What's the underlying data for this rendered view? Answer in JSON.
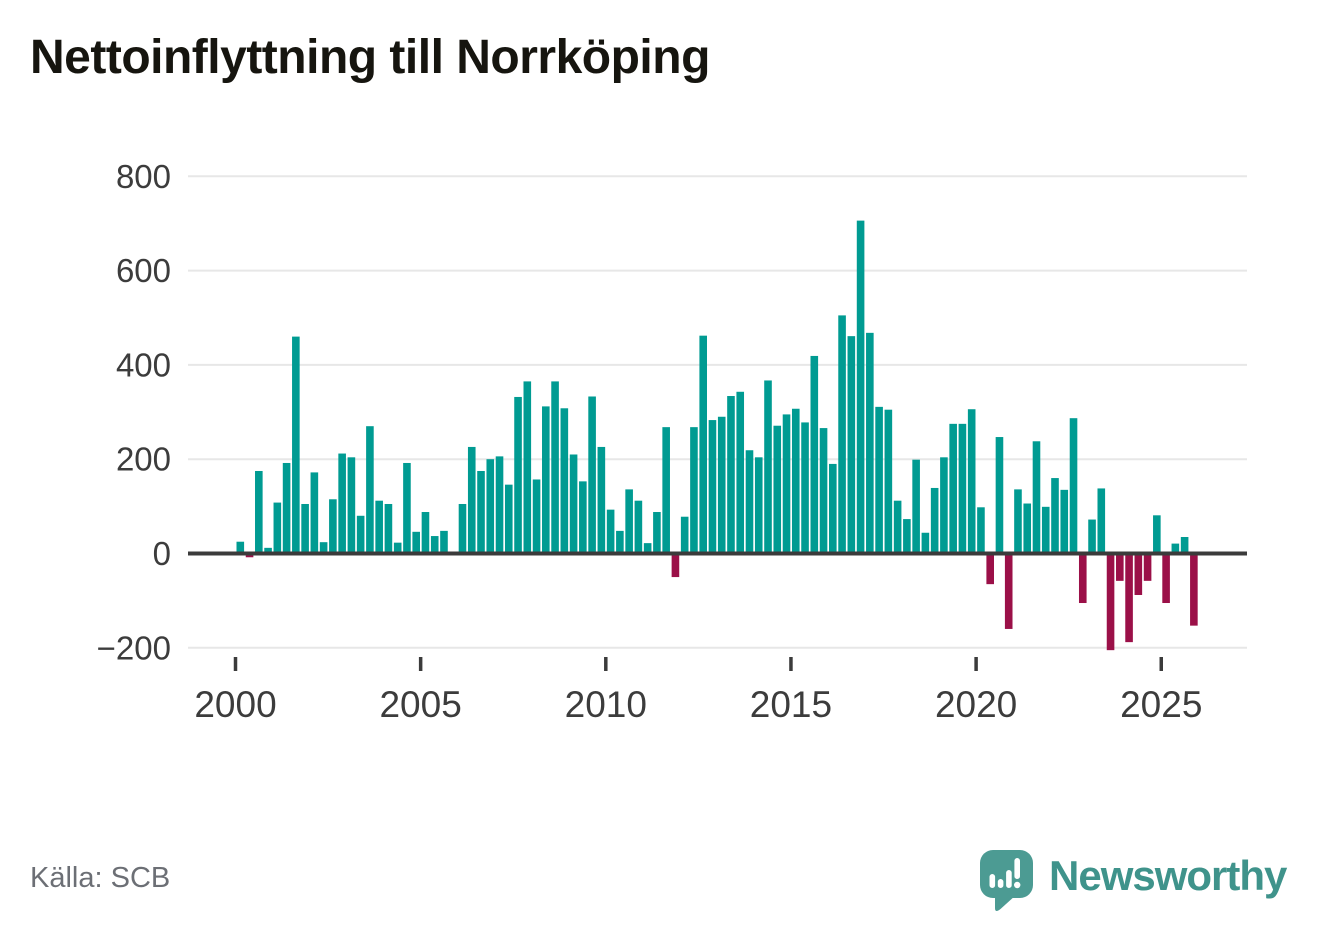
{
  "title": "Nettoinflyttning till Norrköping",
  "source": {
    "label": "Källa: SCB"
  },
  "logo": {
    "text": "Newsworthy",
    "icon": "newsworthy-bubble-chart-icon"
  },
  "chart_data": {
    "type": "bar",
    "title": "Nettoinflyttning till Norrköping",
    "xlabel": "",
    "ylabel": "",
    "frequency": "quarterly",
    "x_range": "2000 Q1 – 2025 Q4",
    "ylim": [
      -260,
      820
    ],
    "grid": true,
    "legend": "none",
    "colors": {
      "positive": "#009B92",
      "negative": "#9B1048",
      "axis": "#3B3B3B",
      "gridline": "#E7E7E7",
      "tick_text": "#3C3C3C"
    },
    "y_ticks": [
      {
        "label": "800",
        "value": 800
      },
      {
        "label": "600",
        "value": 600
      },
      {
        "label": "400",
        "value": 400
      },
      {
        "label": "200",
        "value": 200
      },
      {
        "label": "0",
        "value": 0
      },
      {
        "label": "−200",
        "value": -200
      }
    ],
    "x_ticks": [
      {
        "label": "2000",
        "year": 2000
      },
      {
        "label": "2005",
        "year": 2005
      },
      {
        "label": "2010",
        "year": 2010
      },
      {
        "label": "2015",
        "year": 2015
      },
      {
        "label": "2020",
        "year": 2020
      },
      {
        "label": "2025",
        "year": 2025
      }
    ],
    "series": [
      {
        "year": 2000,
        "values": [
          25,
          -8,
          175,
          12
        ]
      },
      {
        "year": 2001,
        "values": [
          108,
          192,
          460,
          105
        ]
      },
      {
        "year": 2002,
        "values": [
          172,
          24,
          115,
          212
        ]
      },
      {
        "year": 2003,
        "values": [
          204,
          80,
          270,
          112
        ]
      },
      {
        "year": 2004,
        "values": [
          105,
          23,
          192,
          46
        ]
      },
      {
        "year": 2005,
        "values": [
          88,
          37,
          48,
          0
        ]
      },
      {
        "year": 2006,
        "values": [
          105,
          226,
          175,
          200
        ]
      },
      {
        "year": 2007,
        "values": [
          206,
          146,
          332,
          365
        ]
      },
      {
        "year": 2008,
        "values": [
          157,
          312,
          365,
          308
        ]
      },
      {
        "year": 2009,
        "values": [
          210,
          153,
          333,
          226
        ]
      },
      {
        "year": 2010,
        "values": [
          93,
          48,
          136,
          112
        ]
      },
      {
        "year": 2011,
        "values": [
          22,
          88,
          268,
          -50
        ]
      },
      {
        "year": 2012,
        "values": [
          78,
          268,
          462,
          283
        ]
      },
      {
        "year": 2013,
        "values": [
          290,
          334,
          343,
          219
        ]
      },
      {
        "year": 2014,
        "values": [
          204,
          367,
          271,
          295
        ]
      },
      {
        "year": 2015,
        "values": [
          307,
          278,
          419,
          266
        ]
      },
      {
        "year": 2016,
        "values": [
          190,
          505,
          461,
          706
        ]
      },
      {
        "year": 2017,
        "values": [
          468,
          311,
          305,
          112
        ]
      },
      {
        "year": 2018,
        "values": [
          73,
          199,
          44,
          139
        ]
      },
      {
        "year": 2019,
        "values": [
          204,
          275,
          275,
          306
        ]
      },
      {
        "year": 2020,
        "values": [
          98,
          -65,
          247,
          -160
        ]
      },
      {
        "year": 2021,
        "values": [
          136,
          106,
          238,
          99
        ]
      },
      {
        "year": 2022,
        "values": [
          160,
          135,
          287,
          -105
        ]
      },
      {
        "year": 2023,
        "values": [
          72,
          138,
          -205,
          -58
        ]
      },
      {
        "year": 2024,
        "values": [
          -188,
          -88,
          -58,
          81
        ]
      },
      {
        "year": 2025,
        "values": [
          -105,
          21,
          35,
          -153
        ]
      }
    ]
  }
}
